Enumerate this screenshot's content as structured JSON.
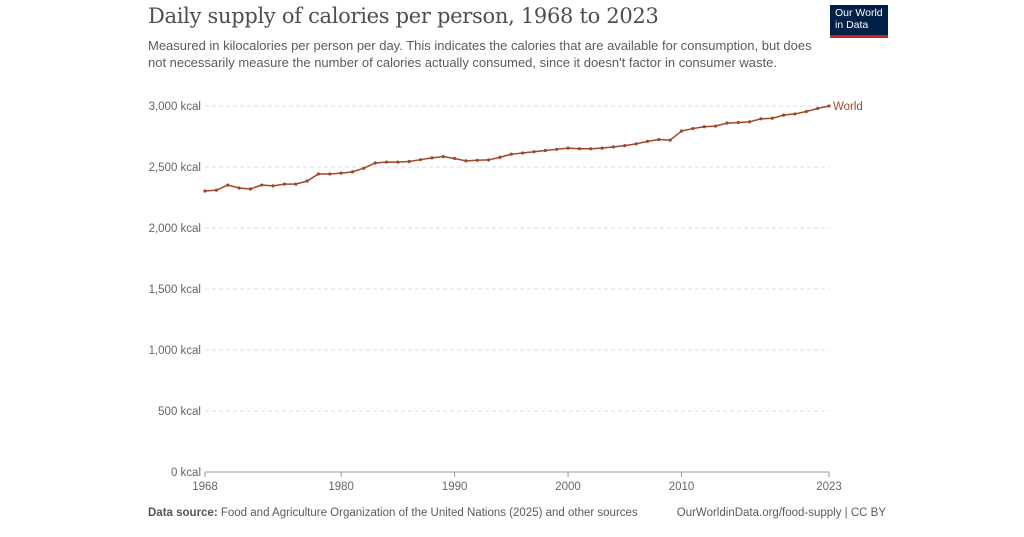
{
  "chart_data": {
    "type": "line",
    "title": "Daily supply of calories per person, 1968 to 2023",
    "subtitle": "Measured in kilocalories per person per day. This indicates the calories that are available for consumption, but does not necessarily measure the number of calories actually consumed, since it doesn't factor in consumer waste.",
    "xlabel": "",
    "ylabel": "",
    "xlim": [
      1968,
      2023
    ],
    "ylim": [
      0,
      3000
    ],
    "y_ticks": [
      0,
      500,
      1000,
      1500,
      2000,
      2500,
      3000
    ],
    "y_tick_labels": [
      "0 kcal",
      "500 kcal",
      "1,000 kcal",
      "1,500 kcal",
      "2,000 kcal",
      "2,500 kcal",
      "3,000 kcal"
    ],
    "x_ticks": [
      1968,
      1980,
      1990,
      2000,
      2010,
      2023
    ],
    "x_tick_labels": [
      "1968",
      "1980",
      "1990",
      "2000",
      "2010",
      "2023"
    ],
    "grid": true,
    "series": [
      {
        "name": "World",
        "color": "#a2462a",
        "x": [
          1968,
          1969,
          1970,
          1971,
          1972,
          1973,
          1974,
          1975,
          1976,
          1977,
          1978,
          1979,
          1980,
          1981,
          1982,
          1983,
          1984,
          1985,
          1986,
          1987,
          1988,
          1989,
          1990,
          1991,
          1992,
          1993,
          1994,
          1995,
          1996,
          1997,
          1998,
          1999,
          2000,
          2001,
          2002,
          2003,
          2004,
          2005,
          2006,
          2007,
          2008,
          2009,
          2010,
          2011,
          2012,
          2013,
          2014,
          2015,
          2016,
          2017,
          2018,
          2019,
          2020,
          2021,
          2022,
          2023
        ],
        "values": [
          2303,
          2310,
          2352,
          2328,
          2320,
          2352,
          2345,
          2360,
          2360,
          2385,
          2443,
          2443,
          2450,
          2460,
          2490,
          2533,
          2540,
          2540,
          2545,
          2560,
          2575,
          2585,
          2570,
          2550,
          2555,
          2558,
          2580,
          2605,
          2615,
          2625,
          2635,
          2645,
          2655,
          2650,
          2650,
          2655,
          2665,
          2675,
          2690,
          2710,
          2725,
          2720,
          2795,
          2815,
          2830,
          2835,
          2860,
          2865,
          2870,
          2895,
          2900,
          2925,
          2935,
          2955,
          2980,
          3000
        ]
      }
    ]
  },
  "logo": {
    "line1": "Our World",
    "line2": "in Data"
  },
  "footer": {
    "source_label": "Data source:",
    "source_text": " Food and Agriculture Organization of the United Nations (2025) and other sources",
    "url": "OurWorldinData.org/food-supply | CC BY"
  }
}
